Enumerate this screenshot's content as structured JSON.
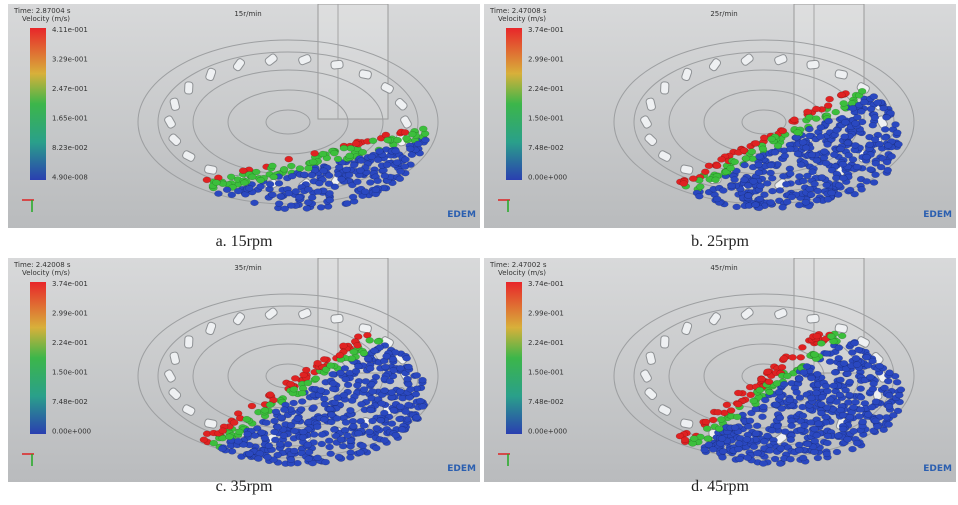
{
  "panels": [
    {
      "time": "Time: 2.87004 s",
      "legend_title": "Velocity (m/s)",
      "title": "15r/min",
      "legend_labels": [
        "4.11e-001",
        "3.29e-001",
        "2.47e-001",
        "1.65e-001",
        "8.23e-002",
        "4.90e-008"
      ],
      "logo": "EDEM",
      "caption": "a. 15rpm"
    },
    {
      "time": "Time: 2.47008 s",
      "legend_title": "Velocity (m/s)",
      "title": "25r/min",
      "legend_labels": [
        "3.74e-001",
        "2.99e-001",
        "2.24e-001",
        "1.50e-001",
        "7.48e-002",
        "0.00e+000"
      ],
      "logo": "EDEM",
      "caption": "b. 25rpm"
    },
    {
      "time": "Time: 2.42008 s",
      "legend_title": "Velocity (m/s)",
      "title": "35r/min",
      "legend_labels": [
        "3.74e-001",
        "2.99e-001",
        "2.24e-001",
        "1.50e-001",
        "7.48e-002",
        "0.00e+000"
      ],
      "logo": "EDEM",
      "caption": "c. 35rpm"
    },
    {
      "time": "Time: 2.47002 s",
      "legend_title": "Velocity (m/s)",
      "title": "45r/min",
      "legend_labels": [
        "3.74e-001",
        "2.99e-001",
        "2.24e-001",
        "1.50e-001",
        "7.48e-002",
        "0.00e+000"
      ],
      "logo": "EDEM",
      "caption": "d. 45rpm"
    }
  ]
}
